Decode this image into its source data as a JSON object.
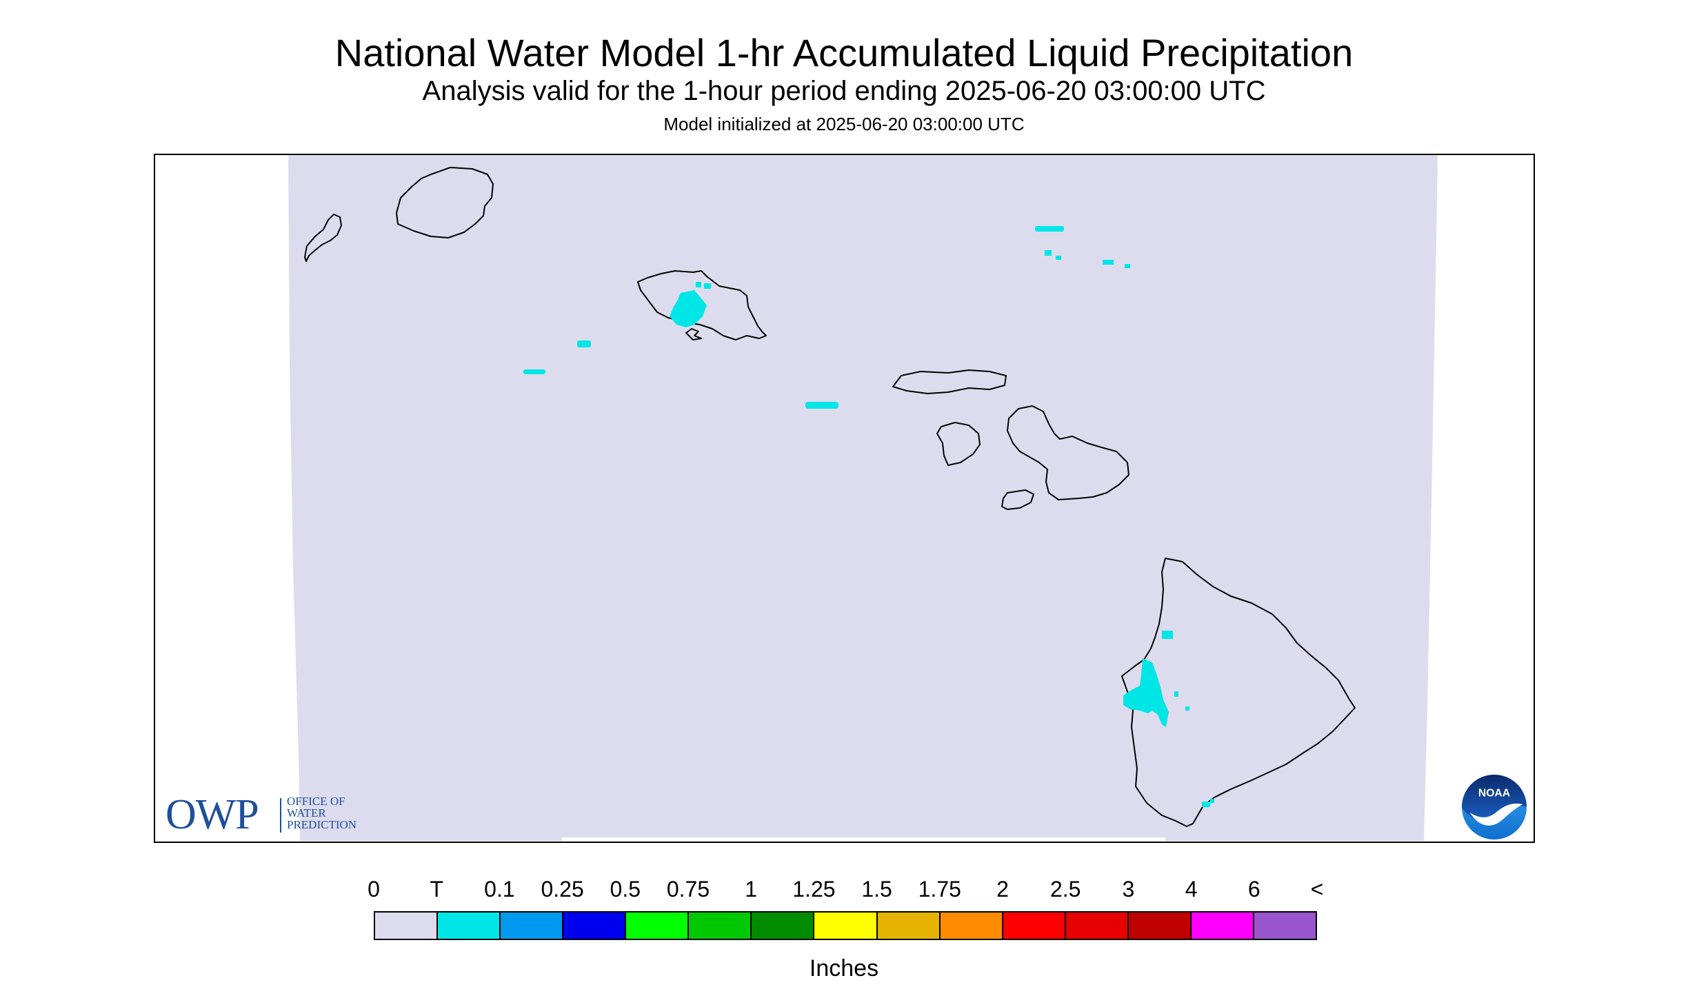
{
  "header": {
    "title": "National Water Model 1-hr Accumulated Liquid Precipitation",
    "subtitle": "Analysis valid for the 1-hour period ending 2025-06-20 03:00:00 UTC",
    "initialized": "Model initialized at 2025-06-20 03:00:00 UTC"
  },
  "map": {
    "region": "Hawaii",
    "background_color": "#dcdcee",
    "coastline_color": "#000000",
    "precip_color": "#00e6e6"
  },
  "logos": {
    "owp": {
      "letters": "OWP",
      "lines": [
        "OFFICE OF",
        "WATER",
        "PREDICTION"
      ]
    },
    "noaa": {
      "text": "NOAA"
    }
  },
  "legend": {
    "labels": [
      "0",
      "T",
      "0.1",
      "0.25",
      "0.5",
      "0.75",
      "1",
      "1.25",
      "1.5",
      "1.75",
      "2",
      "2.5",
      "3",
      "4",
      "6",
      "<"
    ],
    "colors": [
      "#dcdcee",
      "#00e6e6",
      "#0099f0",
      "#0000f0",
      "#00ff00",
      "#00c800",
      "#008c00",
      "#ffff00",
      "#e6b400",
      "#ff8c00",
      "#ff0000",
      "#e60000",
      "#be0000",
      "#ff00ff",
      "#9955cc"
    ],
    "units": "Inches"
  }
}
